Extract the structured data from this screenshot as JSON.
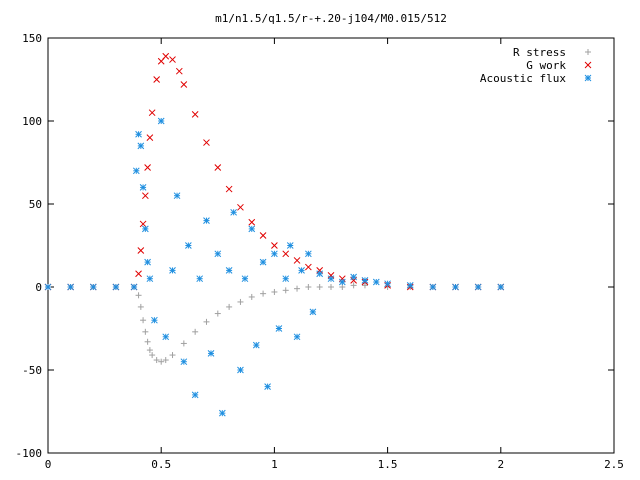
{
  "chart_data": {
    "type": "scatter",
    "title": "m1/n1.5/q1.5/r-+.20-j104/M0.015/512",
    "xlabel": "",
    "ylabel": "",
    "xlim": [
      0,
      2.5
    ],
    "ylim": [
      -100,
      150
    ],
    "xticks": [
      0,
      0.5,
      1,
      1.5,
      2,
      2.5
    ],
    "xtick_labels": [
      "0",
      "0.5",
      "1",
      "1.5",
      "2",
      "2.5"
    ],
    "yticks": [
      -100,
      -50,
      0,
      50,
      100,
      150
    ],
    "ytick_labels": [
      "-100",
      "-50",
      "0",
      "50",
      "100",
      "150"
    ],
    "grid": false,
    "legend_position": "top-right",
    "series": [
      {
        "name": "R stress",
        "marker": "plus",
        "color": "#a0a0a0",
        "x": [
          0.0,
          0.1,
          0.2,
          0.3,
          0.38,
          0.4,
          0.41,
          0.42,
          0.43,
          0.44,
          0.45,
          0.46,
          0.48,
          0.5,
          0.52,
          0.55,
          0.6,
          0.65,
          0.7,
          0.75,
          0.8,
          0.85,
          0.9,
          0.95,
          1.0,
          1.05,
          1.1,
          1.15,
          1.2,
          1.25,
          1.3,
          1.35,
          1.4,
          1.5,
          1.6,
          1.7,
          1.8,
          1.9,
          2.0
        ],
        "y": [
          0,
          0,
          0,
          0,
          0,
          -5,
          -12,
          -20,
          -27,
          -33,
          -38,
          -41,
          -44,
          -45,
          -44,
          -41,
          -34,
          -27,
          -21,
          -16,
          -12,
          -9,
          -6,
          -4,
          -3,
          -2,
          -1,
          0,
          0,
          0,
          0,
          1,
          1,
          0,
          0,
          0,
          0,
          0,
          0
        ]
      },
      {
        "name": "G work",
        "marker": "cross",
        "color": "#e00000",
        "x": [
          0.0,
          0.1,
          0.2,
          0.3,
          0.38,
          0.4,
          0.41,
          0.42,
          0.43,
          0.44,
          0.45,
          0.46,
          0.48,
          0.5,
          0.52,
          0.55,
          0.58,
          0.6,
          0.65,
          0.7,
          0.75,
          0.8,
          0.85,
          0.9,
          0.95,
          1.0,
          1.05,
          1.1,
          1.15,
          1.2,
          1.25,
          1.3,
          1.35,
          1.4,
          1.5,
          1.6,
          1.7,
          1.8,
          1.9,
          2.0
        ],
        "y": [
          0,
          0,
          0,
          0,
          0,
          8,
          22,
          38,
          55,
          72,
          90,
          105,
          125,
          136,
          139,
          137,
          130,
          122,
          104,
          87,
          72,
          59,
          48,
          39,
          31,
          25,
          20,
          16,
          12,
          10,
          7,
          5,
          4,
          3,
          1,
          0,
          0,
          0,
          0,
          0
        ]
      },
      {
        "name": "Acoustic flux",
        "marker": "star",
        "color": "#1f8fe0",
        "x": [
          0.0,
          0.1,
          0.2,
          0.3,
          0.38,
          0.39,
          0.4,
          0.41,
          0.42,
          0.43,
          0.44,
          0.45,
          0.47,
          0.5,
          0.52,
          0.55,
          0.57,
          0.6,
          0.62,
          0.65,
          0.67,
          0.7,
          0.72,
          0.75,
          0.77,
          0.8,
          0.82,
          0.85,
          0.87,
          0.9,
          0.92,
          0.95,
          0.97,
          1.0,
          1.02,
          1.05,
          1.07,
          1.1,
          1.12,
          1.15,
          1.17,
          1.2,
          1.25,
          1.3,
          1.35,
          1.4,
          1.45,
          1.5,
          1.6,
          1.7,
          1.8,
          1.9,
          2.0
        ],
        "y": [
          0,
          0,
          0,
          0,
          0,
          70,
          92,
          85,
          60,
          35,
          15,
          5,
          -20,
          100,
          -30,
          10,
          55,
          -45,
          25,
          -65,
          5,
          40,
          -40,
          20,
          -76,
          10,
          45,
          -50,
          5,
          35,
          -35,
          15,
          -60,
          20,
          -25,
          5,
          25,
          -30,
          10,
          20,
          -15,
          8,
          5,
          3,
          6,
          4,
          3,
          2,
          1,
          0,
          0,
          0,
          0
        ]
      }
    ]
  }
}
